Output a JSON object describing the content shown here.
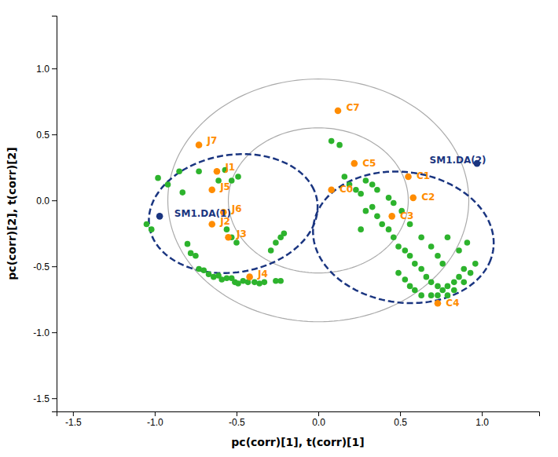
{
  "chart_data": {
    "type": "scatter",
    "xlabel": "pc(corr)[1], t(corr)[1]",
    "ylabel": "pc(corr)[2], t(corr)[2]",
    "xlim": [
      -1.6,
      1.35
    ],
    "ylim": [
      -1.6,
      1.4
    ],
    "xticks": [
      -1.5,
      {
        "value": -1.0,
        "label": "-1.0"
      },
      -0.5,
      {
        "value": 0.0,
        "label": "0.0"
      },
      0.5,
      {
        "value": 1.0,
        "label": "1.0"
      }
    ],
    "yticks": [
      -1.5,
      {
        "value": -1.0,
        "label": "-1.0"
      },
      -0.5,
      {
        "value": 0.0,
        "label": "0.0"
      },
      0.5,
      {
        "value": 1.0,
        "label": "1.0"
      }
    ],
    "circles": [
      {
        "cx": 0.0,
        "cy": 0.0,
        "r": 0.55,
        "color": "#aaaaaa"
      },
      {
        "cx": 0.0,
        "cy": 0.0,
        "r": 0.92,
        "color": "#aaaaaa"
      }
    ],
    "ellipses": [
      {
        "cx": -0.52,
        "cy": -0.1,
        "width": 1.05,
        "height": 0.88,
        "angle": 20,
        "color": "#1a3580",
        "line_style": "dashed"
      },
      {
        "cx": 0.52,
        "cy": -0.28,
        "width": 1.12,
        "height": 0.98,
        "angle": -20,
        "color": "#1a3580",
        "line_style": "dashed"
      }
    ],
    "series": [
      {
        "color": "#2db32d",
        "x": [
          -1.05,
          -1.02,
          -0.98,
          -0.92,
          -0.85,
          -0.83,
          -0.8,
          -0.78,
          -0.75,
          -0.73,
          -0.7,
          -0.67,
          -0.64,
          -0.61,
          -0.59,
          -0.56,
          -0.53,
          -0.51,
          -0.49,
          -0.46,
          -0.43,
          -0.39,
          -0.36,
          -0.33,
          -0.26,
          -0.23,
          -0.29,
          -0.26,
          -0.23,
          -0.21,
          -0.56,
          -0.53,
          -0.5,
          -0.61,
          -0.57,
          -0.53,
          -0.49,
          -0.73,
          0.08,
          0.13,
          0.16,
          0.19,
          0.23,
          0.26,
          0.29,
          0.33,
          0.36,
          0.39,
          0.43,
          0.46,
          0.49,
          0.53,
          0.56,
          0.59,
          0.63,
          0.66,
          0.69,
          0.73,
          0.76,
          0.79,
          0.83,
          0.86,
          0.89,
          0.49,
          0.53,
          0.56,
          0.59,
          0.63,
          0.69,
          0.73,
          0.79,
          0.83,
          0.89,
          0.93,
          0.96,
          0.43,
          0.46,
          0.51,
          0.63,
          0.69,
          0.73,
          0.76,
          0.86,
          0.91,
          0.79,
          0.33,
          0.29,
          0.36,
          0.56,
          0.26
        ],
        "y": [
          -0.18,
          -0.22,
          0.17,
          0.12,
          0.22,
          0.06,
          -0.33,
          -0.4,
          -0.42,
          -0.52,
          -0.53,
          -0.56,
          -0.58,
          -0.57,
          -0.6,
          -0.59,
          -0.59,
          -0.62,
          -0.63,
          -0.61,
          -0.62,
          -0.62,
          -0.63,
          -0.62,
          -0.61,
          -0.61,
          -0.38,
          -0.32,
          -0.28,
          -0.25,
          -0.22,
          -0.28,
          -0.32,
          0.15,
          0.23,
          0.15,
          0.18,
          0.22,
          0.45,
          0.42,
          0.18,
          0.12,
          0.08,
          0.05,
          -0.08,
          -0.05,
          -0.12,
          -0.18,
          -0.22,
          -0.28,
          -0.35,
          -0.38,
          -0.42,
          -0.48,
          -0.52,
          -0.58,
          -0.62,
          -0.65,
          -0.68,
          -0.65,
          -0.62,
          -0.58,
          -0.52,
          -0.55,
          -0.6,
          -0.65,
          -0.68,
          -0.72,
          -0.72,
          -0.72,
          -0.72,
          -0.68,
          -0.62,
          -0.55,
          -0.48,
          0.02,
          -0.02,
          -0.08,
          -0.28,
          -0.35,
          -0.42,
          -0.48,
          -0.38,
          -0.32,
          -0.28,
          0.12,
          0.15,
          0.08,
          -0.18,
          -0.22
        ]
      },
      {
        "color": "#ff8c00",
        "x": [
          -0.62,
          -0.65,
          -0.55,
          -0.42,
          -0.65,
          -0.58,
          -0.73
        ],
        "y": [
          0.22,
          -0.18,
          -0.28,
          -0.58,
          0.08,
          -0.09,
          0.42
        ]
      },
      {
        "color": "#ff8c00",
        "x": [
          0.08,
          0.55,
          0.58,
          0.45,
          0.73,
          0.22,
          0.12
        ],
        "y": [
          0.08,
          0.18,
          0.02,
          -0.12,
          -0.78,
          0.28,
          0.68
        ]
      },
      {
        "color": "#1a3580",
        "x": [
          -0.97,
          0.97
        ],
        "y": [
          -0.12,
          0.28
        ]
      }
    ],
    "annotations": [
      {
        "text": "J1",
        "x": -0.57,
        "y": 0.25,
        "color": "#ff8c00"
      },
      {
        "text": "J2",
        "x": -0.6,
        "y": -0.16,
        "color": "#ff8c00"
      },
      {
        "text": "J3",
        "x": -0.5,
        "y": -0.26,
        "color": "#ff8c00"
      },
      {
        "text": "J4",
        "x": -0.37,
        "y": -0.56,
        "color": "#ff8c00"
      },
      {
        "text": "J5",
        "x": -0.6,
        "y": 0.1,
        "color": "#ff8c00"
      },
      {
        "text": "J6",
        "x": -0.53,
        "y": -0.07,
        "color": "#ff8c00"
      },
      {
        "text": "J7",
        "x": -0.68,
        "y": 0.45,
        "color": "#ff8c00"
      },
      {
        "text": "C0",
        "x": 0.13,
        "y": 0.08,
        "color": "#ff8c00"
      },
      {
        "text": "C1",
        "x": 0.6,
        "y": 0.18,
        "color": "#ff8c00"
      },
      {
        "text": "C2",
        "x": 0.63,
        "y": 0.02,
        "color": "#ff8c00"
      },
      {
        "text": "C3",
        "x": 0.5,
        "y": -0.12,
        "color": "#ff8c00"
      },
      {
        "text": "C4",
        "x": 0.78,
        "y": -0.78,
        "color": "#ff8c00"
      },
      {
        "text": "C5",
        "x": 0.27,
        "y": 0.28,
        "color": "#ff8c00"
      },
      {
        "text": "C7",
        "x": 0.17,
        "y": 0.7,
        "color": "#ff8c00"
      },
      {
        "text": "SM1.DA(1)",
        "x": -0.88,
        "y": -0.1,
        "color": "#1a3580"
      },
      {
        "text": "SM1.DA(2)",
        "x": 0.68,
        "y": 0.3,
        "color": "#1a3580"
      }
    ]
  }
}
